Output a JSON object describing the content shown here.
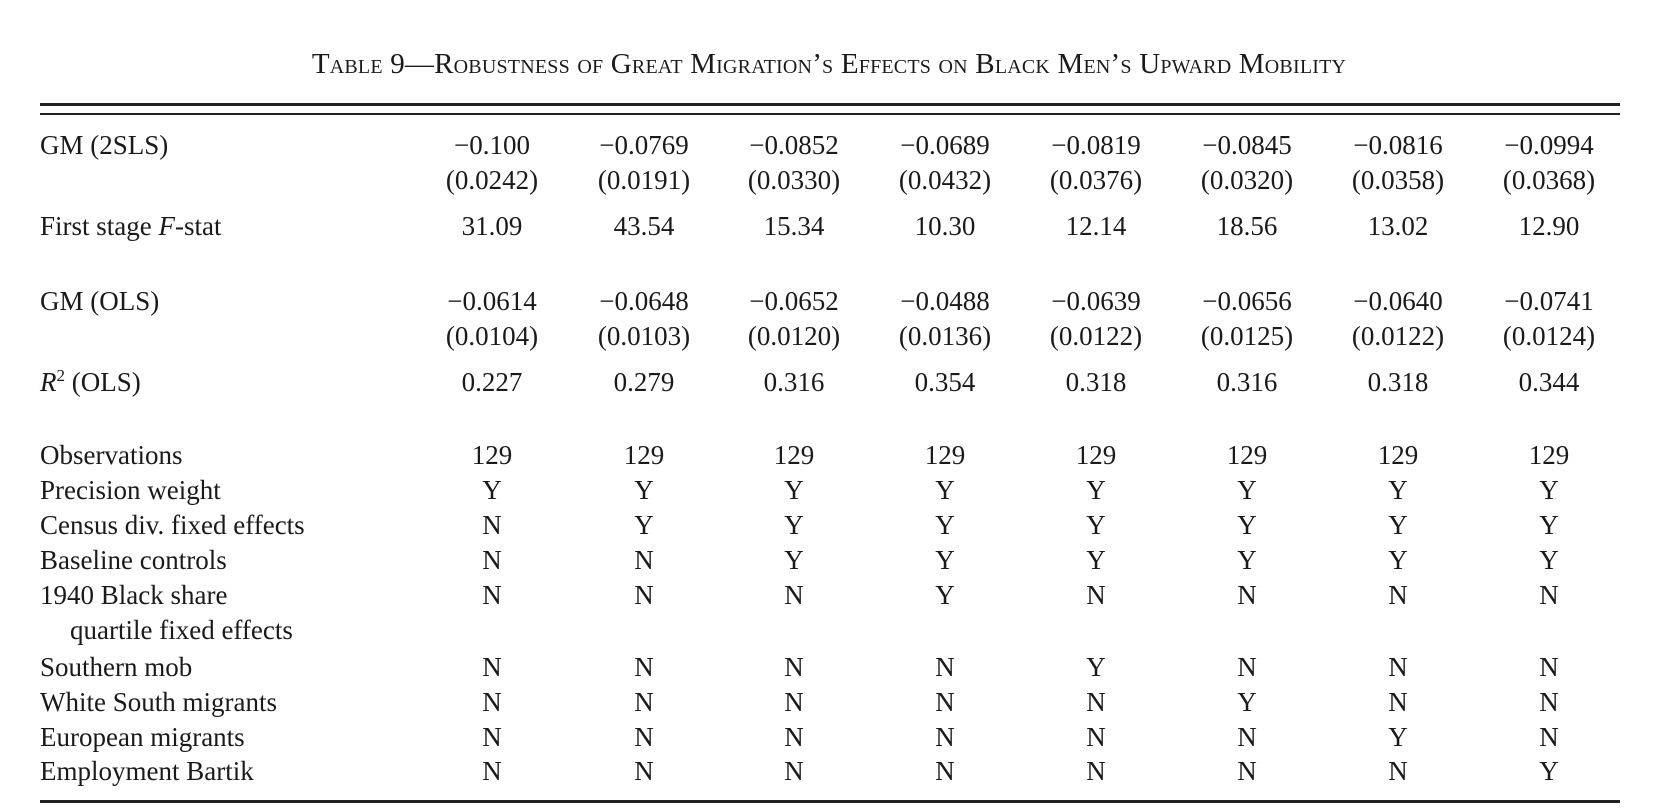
{
  "title": "Table 9—Robustness of Great Migration’s Effects on Black Men’s Upward Mobility",
  "rows": {
    "gm_2sls": {
      "label": "GM (2SLS)",
      "values": [
        "−0.100",
        "−0.0769",
        "−0.0852",
        "−0.0689",
        "−0.0819",
        "−0.0845",
        "−0.0816",
        "−0.0994"
      ]
    },
    "gm_2sls_se": {
      "values": [
        "(0.0242)",
        "(0.0191)",
        "(0.0330)",
        "(0.0432)",
        "(0.0376)",
        "(0.0320)",
        "(0.0358)",
        "(0.0368)"
      ]
    },
    "fstat": {
      "label_pre": "First stage ",
      "label_italic": "F",
      "label_post": "-stat",
      "values": [
        "31.09",
        "43.54",
        "15.34",
        "10.30",
        "12.14",
        "18.56",
        "13.02",
        "12.90"
      ]
    },
    "gm_ols": {
      "label": "GM (OLS)",
      "values": [
        "−0.0614",
        "−0.0648",
        "−0.0652",
        "−0.0488",
        "−0.0639",
        "−0.0656",
        "−0.0640",
        "−0.0741"
      ]
    },
    "gm_ols_se": {
      "values": [
        "(0.0104)",
        "(0.0103)",
        "(0.0120)",
        "(0.0136)",
        "(0.0122)",
        "(0.0125)",
        "(0.0122)",
        "(0.0124)"
      ]
    },
    "r2": {
      "label_italic": "R",
      "label_sup": "2",
      "label_post": " (OLS)",
      "values": [
        "0.227",
        "0.279",
        "0.316",
        "0.354",
        "0.318",
        "0.316",
        "0.318",
        "0.344"
      ]
    },
    "obs": {
      "label": "Observations",
      "values": [
        "129",
        "129",
        "129",
        "129",
        "129",
        "129",
        "129",
        "129"
      ]
    },
    "precision": {
      "label": "Precision weight",
      "values": [
        "Y",
        "Y",
        "Y",
        "Y",
        "Y",
        "Y",
        "Y",
        "Y"
      ]
    },
    "census": {
      "label": "Census div. fixed effects",
      "values": [
        "N",
        "Y",
        "Y",
        "Y",
        "Y",
        "Y",
        "Y",
        "Y"
      ]
    },
    "baseline": {
      "label": "Baseline controls",
      "values": [
        "N",
        "N",
        "Y",
        "Y",
        "Y",
        "Y",
        "Y",
        "Y"
      ]
    },
    "share1940": {
      "label": "1940 Black share",
      "label2": "quartile fixed effects",
      "values": [
        "N",
        "N",
        "N",
        "Y",
        "N",
        "N",
        "N",
        "N"
      ]
    },
    "southern": {
      "label": "Southern mob",
      "values": [
        "N",
        "N",
        "N",
        "N",
        "Y",
        "N",
        "N",
        "N"
      ]
    },
    "white_south": {
      "label": "White South migrants",
      "values": [
        "N",
        "N",
        "N",
        "N",
        "N",
        "Y",
        "N",
        "N"
      ]
    },
    "european": {
      "label": "European migrants",
      "values": [
        "N",
        "N",
        "N",
        "N",
        "N",
        "N",
        "Y",
        "N"
      ]
    },
    "bartik": {
      "label": "Employment Bartik",
      "values": [
        "N",
        "N",
        "N",
        "N",
        "N",
        "N",
        "N",
        "Y"
      ]
    }
  }
}
